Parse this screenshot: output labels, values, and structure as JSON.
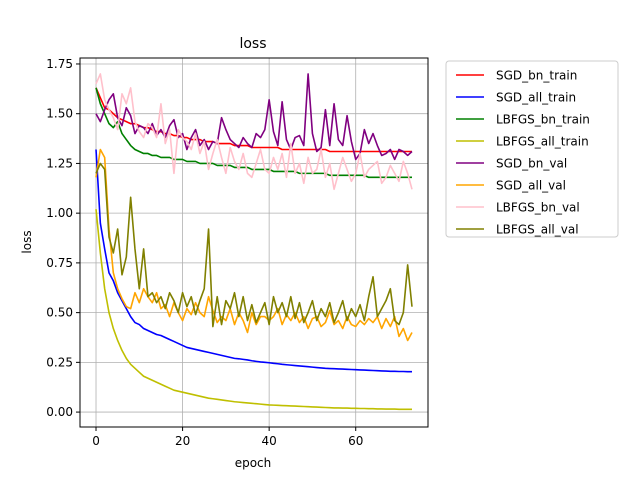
{
  "chart_data": {
    "type": "line",
    "title": "loss",
    "xlabel": "epoch",
    "ylabel": "loss",
    "xlim": [
      -3.7,
      76.7
    ],
    "ylim": [
      -0.075,
      1.78
    ],
    "xticks": [
      0,
      20,
      40,
      60
    ],
    "yticks": [
      0.0,
      0.25,
      0.5,
      0.75,
      1.0,
      1.25,
      1.5,
      1.75
    ],
    "ytick_labels": [
      "0.00",
      "0.25",
      "0.50",
      "0.75",
      "1.00",
      "1.25",
      "1.50",
      "1.75"
    ],
    "grid": true,
    "legend_position": "outside-right-top",
    "series": [
      {
        "name": "SGD_bn_train",
        "color": "#ff0000",
        "values": [
          1.63,
          1.58,
          1.53,
          1.52,
          1.5,
          1.48,
          1.47,
          1.46,
          1.45,
          1.45,
          1.44,
          1.43,
          1.43,
          1.42,
          1.41,
          1.41,
          1.4,
          1.4,
          1.39,
          1.39,
          1.38,
          1.38,
          1.37,
          1.37,
          1.37,
          1.36,
          1.36,
          1.36,
          1.35,
          1.35,
          1.35,
          1.35,
          1.34,
          1.34,
          1.34,
          1.34,
          1.33,
          1.33,
          1.33,
          1.33,
          1.33,
          1.33,
          1.33,
          1.32,
          1.32,
          1.32,
          1.32,
          1.32,
          1.32,
          1.32,
          1.32,
          1.32,
          1.32,
          1.32,
          1.31,
          1.31,
          1.31,
          1.31,
          1.31,
          1.31,
          1.31,
          1.31,
          1.31,
          1.31,
          1.31,
          1.31,
          1.31,
          1.31,
          1.31,
          1.31,
          1.31,
          1.31,
          1.31,
          1.31
        ]
      },
      {
        "name": "SGD_all_train",
        "color": "#0000ff",
        "values": [
          1.32,
          0.95,
          0.82,
          0.7,
          0.66,
          0.6,
          0.56,
          0.52,
          0.48,
          0.45,
          0.44,
          0.42,
          0.41,
          0.4,
          0.39,
          0.385,
          0.375,
          0.365,
          0.355,
          0.345,
          0.335,
          0.325,
          0.32,
          0.315,
          0.31,
          0.305,
          0.3,
          0.295,
          0.29,
          0.285,
          0.28,
          0.275,
          0.27,
          0.268,
          0.265,
          0.262,
          0.258,
          0.255,
          0.252,
          0.25,
          0.248,
          0.245,
          0.243,
          0.24,
          0.238,
          0.236,
          0.234,
          0.232,
          0.23,
          0.228,
          0.226,
          0.224,
          0.222,
          0.22,
          0.219,
          0.218,
          0.217,
          0.216,
          0.215,
          0.214,
          0.213,
          0.212,
          0.211,
          0.21,
          0.209,
          0.208,
          0.207,
          0.206,
          0.205,
          0.205,
          0.204,
          0.204,
          0.203,
          0.203
        ]
      },
      {
        "name": "LBFGS_bn_train",
        "color": "#008000",
        "values": [
          1.63,
          1.55,
          1.5,
          1.45,
          1.43,
          1.46,
          1.4,
          1.37,
          1.34,
          1.32,
          1.31,
          1.3,
          1.3,
          1.29,
          1.29,
          1.28,
          1.28,
          1.28,
          1.27,
          1.27,
          1.27,
          1.26,
          1.26,
          1.26,
          1.25,
          1.25,
          1.25,
          1.25,
          1.24,
          1.24,
          1.24,
          1.24,
          1.23,
          1.23,
          1.23,
          1.23,
          1.22,
          1.22,
          1.22,
          1.22,
          1.22,
          1.21,
          1.21,
          1.21,
          1.21,
          1.21,
          1.21,
          1.2,
          1.2,
          1.2,
          1.2,
          1.2,
          1.2,
          1.2,
          1.19,
          1.19,
          1.19,
          1.19,
          1.19,
          1.19,
          1.19,
          1.19,
          1.19,
          1.18,
          1.18,
          1.18,
          1.18,
          1.18,
          1.18,
          1.18,
          1.18,
          1.18,
          1.18,
          1.18
        ]
      },
      {
        "name": "LBFGS_all_train",
        "color": "#bfbf00",
        "values": [
          1.02,
          0.8,
          0.62,
          0.5,
          0.42,
          0.36,
          0.31,
          0.27,
          0.24,
          0.22,
          0.2,
          0.18,
          0.17,
          0.16,
          0.15,
          0.14,
          0.13,
          0.12,
          0.11,
          0.105,
          0.1,
          0.095,
          0.09,
          0.085,
          0.08,
          0.075,
          0.07,
          0.067,
          0.064,
          0.061,
          0.058,
          0.055,
          0.052,
          0.05,
          0.048,
          0.046,
          0.044,
          0.042,
          0.04,
          0.038,
          0.036,
          0.035,
          0.034,
          0.033,
          0.032,
          0.031,
          0.03,
          0.029,
          0.028,
          0.027,
          0.026,
          0.025,
          0.024,
          0.023,
          0.022,
          0.021,
          0.021,
          0.02,
          0.02,
          0.019,
          0.019,
          0.018,
          0.018,
          0.017,
          0.017,
          0.016,
          0.016,
          0.015,
          0.015,
          0.015,
          0.014,
          0.014,
          0.014,
          0.014
        ]
      },
      {
        "name": "SGD_bn_val",
        "color": "#800080",
        "values": [
          1.5,
          1.46,
          1.52,
          1.57,
          1.6,
          1.48,
          1.44,
          1.53,
          1.49,
          1.4,
          1.44,
          1.43,
          1.4,
          1.45,
          1.39,
          1.42,
          1.38,
          1.44,
          1.47,
          1.38,
          1.4,
          1.32,
          1.38,
          1.42,
          1.34,
          1.37,
          1.32,
          1.36,
          1.35,
          1.48,
          1.42,
          1.37,
          1.35,
          1.33,
          1.38,
          1.35,
          1.33,
          1.4,
          1.38,
          1.42,
          1.57,
          1.41,
          1.34,
          1.56,
          1.37,
          1.32,
          1.38,
          1.39,
          1.34,
          1.7,
          1.4,
          1.31,
          1.33,
          1.52,
          1.34,
          1.55,
          1.37,
          1.34,
          1.49,
          1.36,
          1.27,
          1.3,
          1.42,
          1.35,
          1.4,
          1.34,
          1.29,
          1.3,
          1.32,
          1.27,
          1.32,
          1.31,
          1.29,
          1.31
        ]
      },
      {
        "name": "SGD_all_val",
        "color": "#ffa500",
        "values": [
          1.18,
          1.32,
          1.28,
          0.92,
          0.7,
          0.62,
          0.57,
          0.53,
          0.52,
          0.6,
          0.55,
          0.62,
          0.58,
          0.55,
          0.6,
          0.52,
          0.54,
          0.48,
          0.55,
          0.5,
          0.46,
          0.52,
          0.49,
          0.55,
          0.5,
          0.48,
          0.58,
          0.51,
          0.45,
          0.48,
          0.46,
          0.52,
          0.44,
          0.5,
          0.46,
          0.4,
          0.5,
          0.44,
          0.48,
          0.48,
          0.46,
          0.48,
          0.52,
          0.44,
          0.49,
          0.46,
          0.5,
          0.45,
          0.48,
          0.42,
          0.47,
          0.48,
          0.43,
          0.45,
          0.51,
          0.44,
          0.46,
          0.42,
          0.48,
          0.44,
          0.43,
          0.46,
          0.44,
          0.47,
          0.45,
          0.48,
          0.42,
          0.47,
          0.43,
          0.48,
          0.38,
          0.42,
          0.36,
          0.4
        ]
      },
      {
        "name": "LBFGS_bn_val",
        "color": "#ffc0cb",
        "values": [
          1.65,
          1.7,
          1.57,
          1.52,
          1.48,
          1.42,
          1.6,
          1.55,
          1.63,
          1.46,
          1.41,
          1.38,
          1.45,
          1.43,
          1.38,
          1.55,
          1.35,
          1.42,
          1.2,
          1.42,
          1.38,
          1.36,
          1.32,
          1.4,
          1.3,
          1.36,
          1.22,
          1.3,
          1.37,
          1.28,
          1.2,
          1.33,
          1.26,
          1.22,
          1.3,
          1.2,
          1.18,
          1.25,
          1.32,
          1.22,
          1.2,
          1.28,
          1.22,
          1.3,
          1.18,
          1.35,
          1.2,
          1.25,
          1.15,
          1.28,
          1.2,
          1.22,
          1.32,
          1.18,
          1.25,
          1.12,
          1.2,
          1.28,
          1.22,
          1.16,
          1.2,
          1.3,
          1.18,
          1.22,
          1.24,
          1.26,
          1.15,
          1.18,
          1.24,
          1.2,
          1.16,
          1.26,
          1.2,
          1.12
        ]
      },
      {
        "name": "LBFGS_all_val",
        "color": "#808000",
        "values": [
          1.2,
          1.25,
          1.22,
          0.88,
          0.8,
          0.92,
          0.69,
          0.78,
          1.08,
          0.82,
          0.62,
          0.82,
          0.58,
          0.6,
          0.55,
          0.58,
          0.52,
          0.6,
          0.56,
          0.5,
          0.6,
          0.53,
          0.58,
          0.49,
          0.56,
          0.62,
          0.92,
          0.43,
          0.58,
          0.44,
          0.56,
          0.52,
          0.6,
          0.48,
          0.58,
          0.46,
          0.54,
          0.45,
          0.5,
          0.55,
          0.44,
          0.58,
          0.5,
          0.55,
          0.48,
          0.58,
          0.47,
          0.55,
          0.45,
          0.5,
          0.56,
          0.46,
          0.52,
          0.48,
          0.55,
          0.45,
          0.5,
          0.56,
          0.46,
          0.52,
          0.48,
          0.54,
          0.46,
          0.58,
          0.68,
          0.48,
          0.52,
          0.56,
          0.62,
          0.46,
          0.44,
          0.5,
          0.74,
          0.53
        ]
      }
    ]
  }
}
